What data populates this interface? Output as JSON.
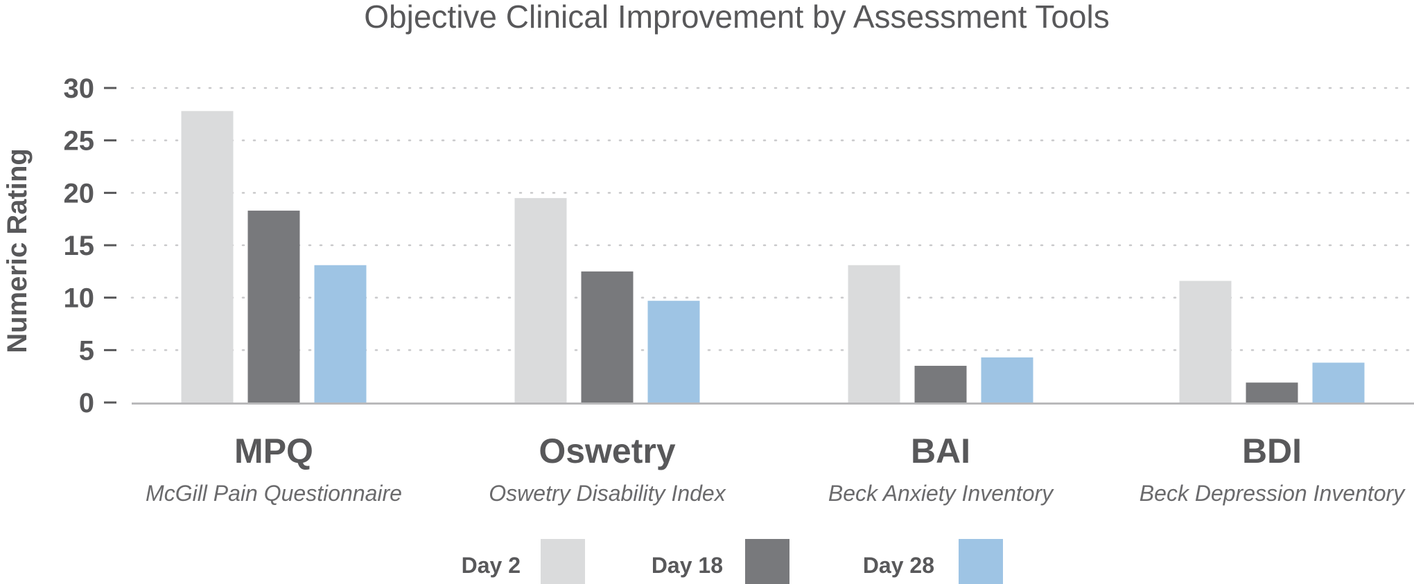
{
  "chart_data": {
    "type": "bar",
    "title": "Objective Clinical Improvement by Assessment Tools",
    "ylabel": "Numeric Rating",
    "xlabel": "",
    "ylim": [
      0,
      30
    ],
    "yticks": [
      "0",
      "5",
      "10",
      "15",
      "20",
      "25",
      "30"
    ],
    "grid": "horizontal dotted",
    "legend_position": "bottom",
    "categories": [
      "MPQ",
      "Oswetry",
      "BAI",
      "BDI"
    ],
    "category_subtitles": [
      "McGill Pain Questionnaire",
      "Oswetry Disability Index",
      "Beck Anxiety Inventory",
      "Beck Depression Inventory"
    ],
    "series": [
      {
        "name": "Day 2",
        "color": "#dadbdc",
        "values": [
          27.8,
          19.5,
          13.1,
          11.6
        ]
      },
      {
        "name": "Day 18",
        "color": "#78797c",
        "values": [
          18.3,
          12.5,
          3.5,
          1.9
        ]
      },
      {
        "name": "Day 28",
        "color": "#9ec4e4",
        "values": [
          13.1,
          9.7,
          4.3,
          3.8
        ]
      }
    ]
  }
}
